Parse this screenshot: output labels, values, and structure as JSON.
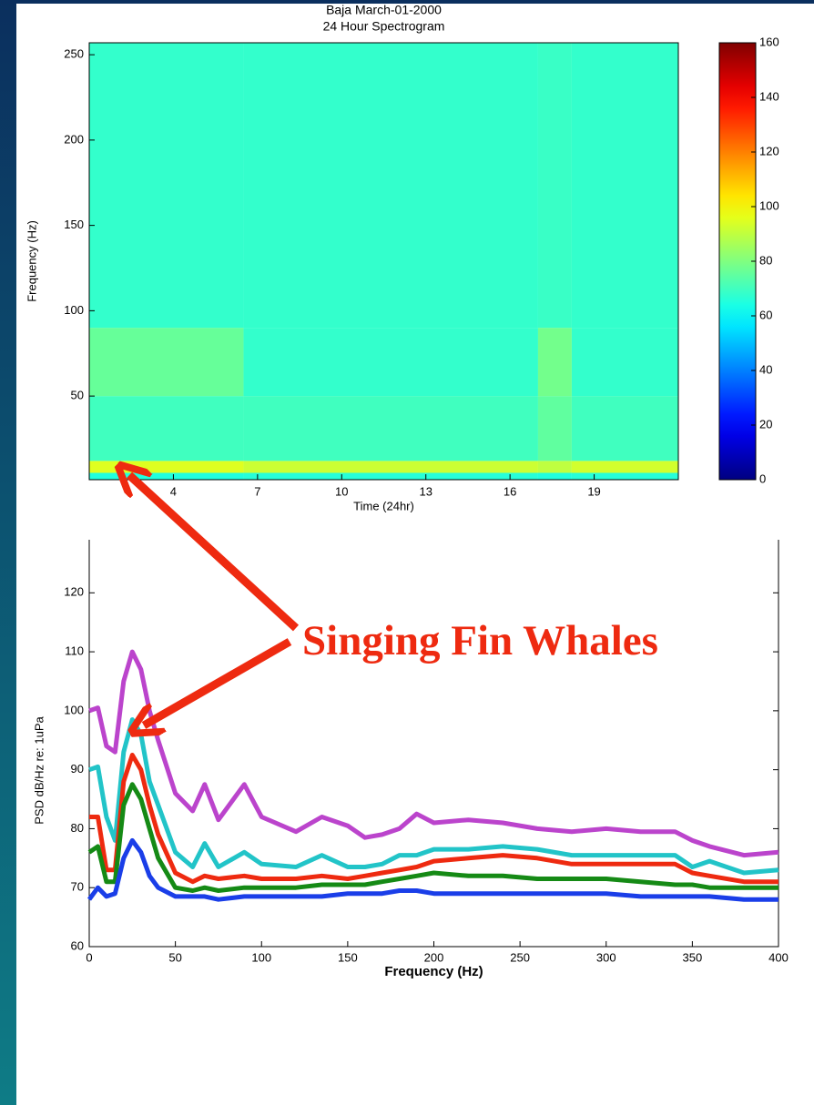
{
  "chart_data": [
    {
      "type": "heatmap",
      "title": "Baja March-01-2000",
      "subtitle": "24 Hour Spectrogram",
      "x_label": "Time (24hr)",
      "y_label": "Frequency (Hz)",
      "xlim": [
        1,
        22
      ],
      "ylim": [
        1,
        257
      ],
      "xticks": [
        4,
        7,
        10,
        13,
        16,
        19
      ],
      "yticks": [
        50,
        100,
        150,
        200,
        250
      ],
      "x_edges": [
        1,
        6.5,
        17,
        18.2,
        22
      ],
      "y_edges": [
        1,
        5,
        12,
        50,
        90,
        257
      ],
      "values": [
        [
          65,
          66,
          65,
          66
        ],
        [
          95,
          92,
          90,
          93
        ],
        [
          70,
          70,
          75,
          70
        ],
        [
          76,
          68,
          78,
          68
        ],
        [
          68,
          68,
          69,
          68
        ]
      ],
      "colormap": "jet",
      "clim": [
        0,
        160
      ],
      "cticks": [
        0,
        20,
        40,
        60,
        80,
        100,
        120,
        140,
        160
      ]
    },
    {
      "type": "line",
      "x_label": "Frequency (Hz)",
      "y_label": "PSD dB/Hz re: 1uPa",
      "xlim": [
        0,
        400
      ],
      "ylim": [
        60,
        129
      ],
      "xticks": [
        0,
        50,
        100,
        150,
        200,
        250,
        300,
        350,
        400
      ],
      "yticks": [
        60,
        70,
        80,
        90,
        100,
        110,
        120
      ],
      "x": [
        0,
        5,
        10,
        15,
        20,
        25,
        30,
        35,
        40,
        50,
        60,
        67,
        75,
        90,
        100,
        120,
        135,
        150,
        160,
        170,
        180,
        190,
        200,
        220,
        240,
        260,
        280,
        300,
        320,
        340,
        350,
        360,
        380,
        400
      ],
      "series": [
        {
          "color": "#bb44cc",
          "values": [
            100,
            100.5,
            94,
            93,
            105,
            110,
            107,
            100,
            95,
            86,
            83,
            87.5,
            81.5,
            87.5,
            82,
            79.5,
            82,
            80.5,
            78.5,
            79,
            80,
            82.5,
            81,
            81.5,
            81,
            80,
            79.5,
            80,
            79.5,
            79.5,
            78,
            77,
            75.5,
            76
          ]
        },
        {
          "color": "#22c4c8",
          "values": [
            90,
            90.5,
            82,
            78,
            93,
            98.5,
            96,
            88,
            84,
            76,
            73.5,
            77.5,
            73.5,
            76,
            74,
            73.5,
            75.5,
            73.5,
            73.5,
            74,
            75.5,
            75.5,
            76.5,
            76.5,
            77,
            76.5,
            75.5,
            75.5,
            75.5,
            75.5,
            73.5,
            74.5,
            72.5,
            73
          ]
        },
        {
          "color": "#ee2a10",
          "values": [
            82,
            82,
            73,
            73,
            88,
            92.5,
            90,
            84,
            79,
            72.5,
            71,
            72,
            71.5,
            72,
            71.5,
            71.5,
            72,
            71.5,
            72,
            72.5,
            73,
            73.5,
            74.5,
            75,
            75.5,
            75,
            74,
            74,
            74,
            74,
            72.5,
            72,
            71,
            71
          ]
        },
        {
          "color": "#158a15",
          "values": [
            76,
            77,
            71,
            71,
            84,
            87.5,
            85,
            80,
            75,
            70,
            69.5,
            70,
            69.5,
            70,
            70,
            70,
            70.5,
            70.5,
            70.5,
            71,
            71.5,
            72,
            72.5,
            72,
            72,
            71.5,
            71.5,
            71.5,
            71,
            70.5,
            70.5,
            70,
            70,
            70
          ]
        },
        {
          "color": "#1a3ee8",
          "values": [
            68,
            70,
            68.5,
            69,
            75,
            78,
            76,
            72,
            70,
            68.5,
            68.5,
            68.5,
            68,
            68.5,
            68.5,
            68.5,
            68.5,
            69,
            69,
            69,
            69.5,
            69.5,
            69,
            69,
            69,
            69,
            69,
            69,
            68.5,
            68.5,
            68.5,
            68.5,
            68,
            68
          ]
        }
      ],
      "annotation": "Singing Fin Whales"
    }
  ]
}
